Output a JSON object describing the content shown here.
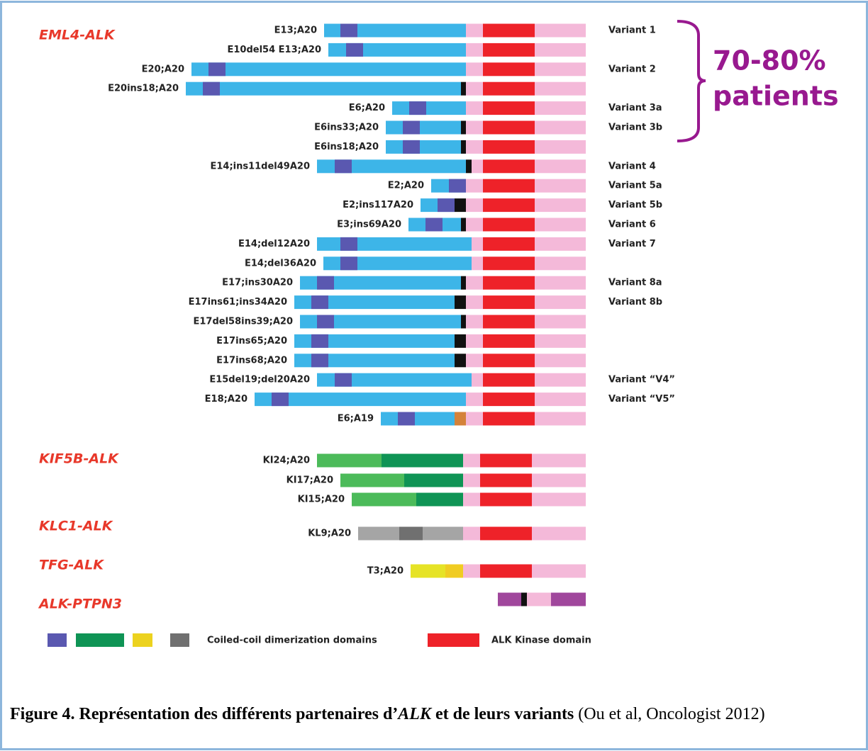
{
  "groups": [
    {
      "label": "EML4-ALK",
      "rows": [
        {
          "fusion": "E13;A20",
          "variant": "Variant 1"
        },
        {
          "fusion": "E10del54 E13;A20"
        },
        {
          "fusion": "E20;A20",
          "variant": "Variant 2"
        },
        {
          "fusion": "E20ins18;A20"
        },
        {
          "fusion": "E6;A20",
          "variant": "Variant 3a"
        },
        {
          "fusion": "E6ins33;A20",
          "variant": "Variant 3b"
        },
        {
          "fusion": "E6ins18;A20"
        },
        {
          "fusion": "E14;ins11del49A20",
          "variant": "Variant 4"
        },
        {
          "fusion": "E2;A20",
          "variant": "Variant 5a"
        },
        {
          "fusion": "E2;ins117A20",
          "variant": "Variant 5b"
        },
        {
          "fusion": "E3;ins69A20",
          "variant": "Variant 6"
        },
        {
          "fusion": "E14;del12A20",
          "variant": "Variant 7"
        },
        {
          "fusion": "E14;del36A20"
        },
        {
          "fusion": "E17;ins30A20",
          "variant": "Variant 8a"
        },
        {
          "fusion": "E17ins61;ins34A20",
          "variant": "Variant 8b"
        },
        {
          "fusion": "E17del58ins39;A20"
        },
        {
          "fusion": "E17ins65;A20"
        },
        {
          "fusion": "E17ins68;A20"
        },
        {
          "fusion": "E15del19;del20A20",
          "variant": "Variant “V4”"
        },
        {
          "fusion": "E18;A20",
          "variant": "Variant “V5”"
        },
        {
          "fusion": "E6;A19"
        }
      ]
    },
    {
      "label": "KIF5B-ALK",
      "rows": [
        {
          "fusion": "KI24;A20"
        },
        {
          "fusion": "KI17;A20"
        },
        {
          "fusion": "KI15;A20"
        }
      ]
    },
    {
      "label": "KLC1-ALK",
      "rows": [
        {
          "fusion": "KL9;A20"
        }
      ]
    },
    {
      "label": "TFG-ALK",
      "rows": [
        {
          "fusion": "T3;A20"
        }
      ]
    },
    {
      "label": "ALK-PTPN3"
    }
  ],
  "annotation_lines": [
    "70-80%",
    "patients"
  ],
  "legend": {
    "coiled_coil": "Coiled-coil dimerization domains",
    "kinase": "ALK Kinase domain"
  },
  "caption": {
    "bold_start": "Figure 4. Représentation des différents partenaires d’",
    "italic": "ALK",
    "bold_end": " et de leurs variants",
    "plain": " (Ou et al, Oncologist 2012)"
  }
}
